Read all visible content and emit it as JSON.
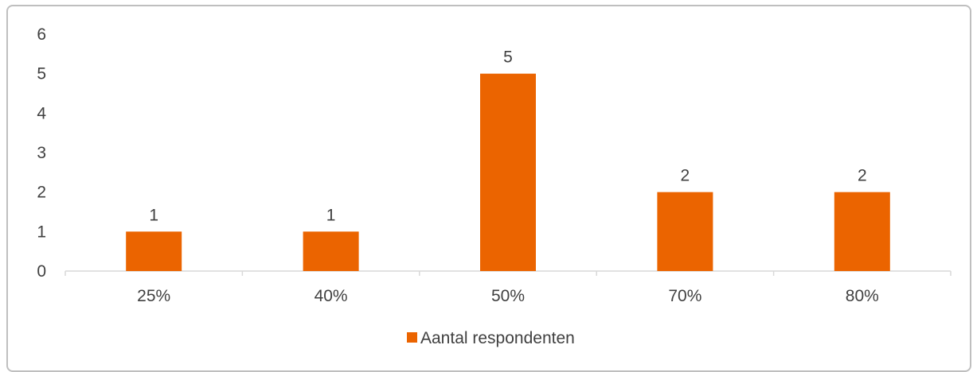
{
  "chart_data": {
    "type": "bar",
    "categories": [
      "25%",
      "40%",
      "50%",
      "70%",
      "80%"
    ],
    "series": [
      {
        "name": "Aantal respondenten",
        "values": [
          1,
          1,
          5,
          2,
          2
        ]
      }
    ],
    "data_labels": [
      "1",
      "1",
      "5",
      "2",
      "2"
    ],
    "y_tick_labels": [
      "0",
      "1",
      "2",
      "3",
      "4",
      "5",
      "6"
    ],
    "ylim": [
      0,
      6
    ],
    "grid": false,
    "legend": "bottom",
    "title": "",
    "xlabel": "",
    "ylabel": "",
    "colors": {
      "bar": "#EB6400",
      "axis": "#D9D9D9",
      "text": "#404040",
      "frame": "#BFBFBF"
    }
  }
}
